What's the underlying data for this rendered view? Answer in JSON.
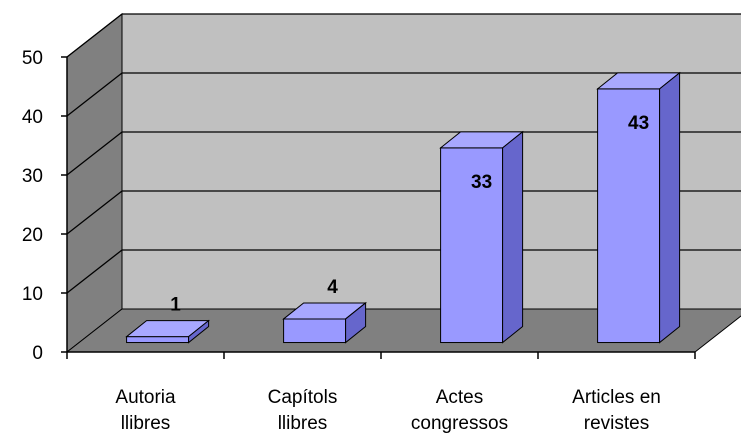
{
  "chart_data": {
    "type": "bar",
    "three_d": true,
    "categories": [
      [
        "Autoria",
        "llibres"
      ],
      [
        "Capítols",
        "llibres"
      ],
      [
        "Actes",
        "congressos"
      ],
      [
        "Articles en",
        "revistes"
      ]
    ],
    "values": [
      1,
      4,
      33,
      43
    ],
    "data_labels": [
      "1",
      "4",
      "33",
      "43"
    ],
    "ylim": [
      0,
      50
    ],
    "yticks": [
      "0",
      "10",
      "20",
      "30",
      "40",
      "50"
    ],
    "grid": true,
    "legend": "none",
    "colors": {
      "bar_front": "#9999ff",
      "bar_top": "#a8a8ff",
      "bar_side": "#6666cc",
      "back_wall": "#c0c0c0",
      "side_wall": "#808080",
      "floor": "#808080",
      "gridline": "#000000"
    }
  }
}
